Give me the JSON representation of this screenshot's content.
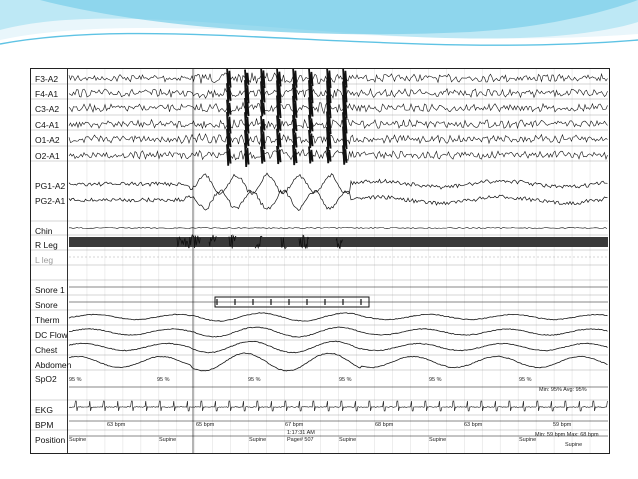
{
  "colors": {
    "accent": "#5fc3e4",
    "accent_light": "#bde8f5",
    "trace": "#111111"
  },
  "channels": {
    "eeg": [
      "F3-A2",
      "F4-A1",
      "C3-A2",
      "C4-A1",
      "O1-A2",
      "O2-A1"
    ],
    "eog": [
      "PG1-A2",
      "PG2-A1"
    ],
    "emg": [
      "Chin",
      "R Leg",
      "L leg"
    ],
    "resp": [
      "Snore 1",
      "Snore",
      "Therm",
      "DC Flow",
      "Chest",
      "Abdomen"
    ],
    "spo2": "SpO2",
    "ekg": "EKG",
    "bpm": "BPM",
    "position": "Position"
  },
  "spo2_values": [
    "95 %",
    "95 %",
    "95 %",
    "95 %",
    "95 %",
    "95 %"
  ],
  "spo2_summary": "Min: 95%  Avg: 95%",
  "bpm_values": [
    "63 bpm",
    "65 bpm",
    "67 bpm",
    "68 bpm",
    "63 bpm",
    "59 bpm"
  ],
  "bpm_summary": "Min: 59 bpm  Max: 68 bpm",
  "position_values": [
    "Supine",
    "Supine",
    "Supine",
    "Supine",
    "Supine",
    "Supine",
    "Supine"
  ],
  "time": "1:17:31 AM",
  "page": "Page# 507"
}
